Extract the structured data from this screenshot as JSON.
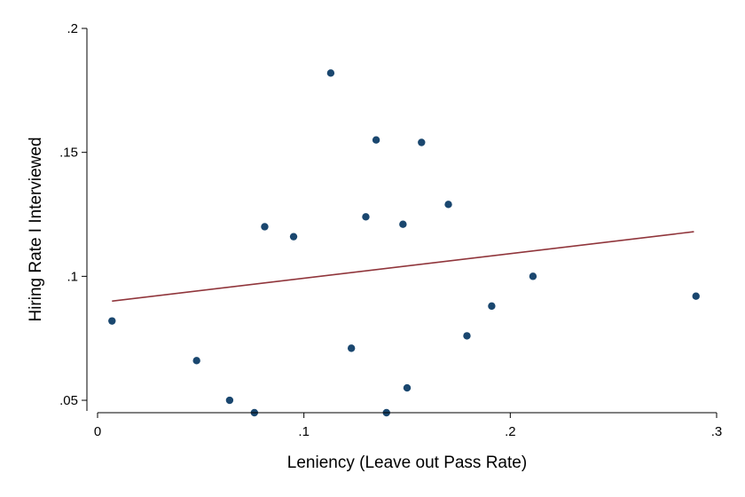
{
  "chart_data": {
    "type": "scatter",
    "title": "",
    "xlabel": "Leniency (Leave out Pass Rate)",
    "ylabel": "Hiring Rate I Interviewed",
    "xlim": [
      0,
      0.3
    ],
    "ylim": [
      0.045,
      0.2
    ],
    "x_ticks": [
      0,
      0.1,
      0.2,
      0.3
    ],
    "x_tick_labels": [
      "0",
      ".1",
      ".2",
      ".3"
    ],
    "y_ticks": [
      0.05,
      0.1,
      0.15,
      0.2
    ],
    "y_tick_labels": [
      ".05",
      ".1",
      ".15",
      ".2"
    ],
    "grid": false,
    "legend": "none",
    "points": [
      {
        "x": 0.007,
        "y": 0.082
      },
      {
        "x": 0.048,
        "y": 0.066
      },
      {
        "x": 0.064,
        "y": 0.05
      },
      {
        "x": 0.076,
        "y": 0.045
      },
      {
        "x": 0.081,
        "y": 0.12
      },
      {
        "x": 0.095,
        "y": 0.116
      },
      {
        "x": 0.113,
        "y": 0.182
      },
      {
        "x": 0.123,
        "y": 0.071
      },
      {
        "x": 0.13,
        "y": 0.124
      },
      {
        "x": 0.135,
        "y": 0.155
      },
      {
        "x": 0.14,
        "y": 0.045
      },
      {
        "x": 0.148,
        "y": 0.121
      },
      {
        "x": 0.15,
        "y": 0.055
      },
      {
        "x": 0.157,
        "y": 0.154
      },
      {
        "x": 0.17,
        "y": 0.129
      },
      {
        "x": 0.179,
        "y": 0.076
      },
      {
        "x": 0.191,
        "y": 0.088
      },
      {
        "x": 0.211,
        "y": 0.1
      },
      {
        "x": 0.29,
        "y": 0.092
      }
    ],
    "fit_line": {
      "x": [
        0.007,
        0.289
      ],
      "y": [
        0.09,
        0.118
      ]
    },
    "colors": {
      "points": "#1a476f",
      "fit_line": "#90353b",
      "axes": "#000000",
      "background": "#ffffff"
    }
  }
}
